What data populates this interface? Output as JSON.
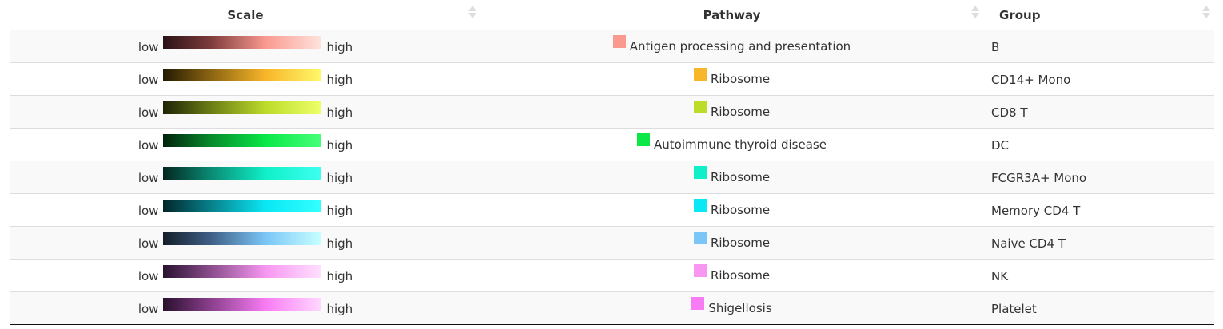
{
  "table": {
    "columns": [
      {
        "label": "Scale"
      },
      {
        "label": "Pathway"
      },
      {
        "label": "Group"
      }
    ],
    "scale_low_label": "low",
    "scale_high_label": "high",
    "rows": [
      {
        "pathway": "Antigen processing and presentation",
        "group": "B",
        "color": "#fa9a8f",
        "gradient": [
          "#2a1215",
          "#7d3b3b",
          "#fa9a8f",
          "#ffe3dd"
        ]
      },
      {
        "pathway": "Ribosome",
        "group": "CD14+ Mono",
        "color": "#f8b62a",
        "gradient": [
          "#241a03",
          "#8a6411",
          "#f8b62a",
          "#fff86a"
        ]
      },
      {
        "pathway": "Ribosome",
        "group": "CD8 T",
        "color": "#bcdc2a",
        "gradient": [
          "#1d2307",
          "#6a7c15",
          "#bcdc2a",
          "#eeff6a"
        ]
      },
      {
        "pathway": "Autoimmune thyroid disease",
        "group": "DC",
        "color": "#0ae848",
        "gradient": [
          "#02210c",
          "#068a2c",
          "#0ae848",
          "#47ff7a"
        ]
      },
      {
        "pathway": "Ribosome",
        "group": "FCGR3A+ Mono",
        "color": "#0ff0c8",
        "gradient": [
          "#03261f",
          "#0a8a73",
          "#0ff0c8",
          "#3dfff0"
        ]
      },
      {
        "pathway": "Ribosome",
        "group": "Memory CD4 T",
        "color": "#0ae8f5",
        "gradient": [
          "#02262a",
          "#07808a",
          "#0ae8f5",
          "#33ffff"
        ]
      },
      {
        "pathway": "Ribosome",
        "group": "Naive CD4 T",
        "color": "#7cc6f7",
        "gradient": [
          "#151e2a",
          "#3f5f86",
          "#7cc6f7",
          "#c8ffff"
        ]
      },
      {
        "pathway": "Ribosome",
        "group": "NK",
        "color": "#f797f2",
        "gradient": [
          "#2a1230",
          "#8a4d8c",
          "#f797f2",
          "#ffe0ff"
        ]
      },
      {
        "pathway": "Shigellosis",
        "group": "Platelet",
        "color": "#f87cf4",
        "gradient": [
          "#2a0f2e",
          "#8a3f8c",
          "#f87cf4",
          "#ffd8ff"
        ]
      }
    ]
  }
}
